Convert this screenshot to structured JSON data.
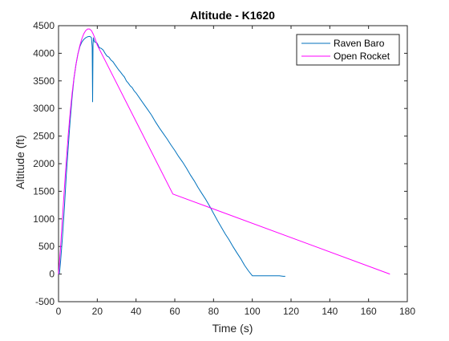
{
  "chart_data": {
    "type": "line",
    "title": "Altitude - K1620",
    "xlabel": "Time (s)",
    "ylabel": "Altitude (ft)",
    "xlim": [
      0,
      180
    ],
    "ylim": [
      -500,
      4500
    ],
    "xticks": [
      "0",
      "20",
      "40",
      "60",
      "80",
      "100",
      "120",
      "140",
      "160",
      "180"
    ],
    "yticks": [
      "-500",
      "0",
      "500",
      "1000",
      "1500",
      "2000",
      "2500",
      "3000",
      "3500",
      "4000",
      "4500"
    ],
    "grid": false,
    "legend_position": "top-right",
    "series": [
      {
        "name": "Raven Baro",
        "color": "#0072BD",
        "x": [
          0,
          0.5,
          1,
          2,
          3,
          4,
          5,
          6,
          7,
          8,
          9,
          10,
          11,
          12,
          13,
          14,
          15,
          16,
          16.5,
          17,
          17.4,
          17.6,
          17.8,
          18,
          18.5,
          19,
          20,
          21,
          22,
          23,
          24,
          25,
          26,
          27,
          28,
          29,
          30,
          31,
          32,
          33,
          34,
          35,
          36,
          37,
          38,
          39,
          40,
          42,
          44,
          46,
          48,
          50,
          52,
          54,
          56,
          58,
          60,
          62,
          64,
          66,
          68,
          70,
          72,
          74,
          76,
          78,
          80,
          82,
          84,
          86,
          88,
          90,
          92,
          94,
          96,
          98,
          100,
          102,
          104,
          106,
          108,
          110,
          111,
          111.5,
          112,
          112.3,
          112.6,
          113,
          114,
          116,
          117
        ],
        "y": [
          0,
          20,
          200,
          650,
          1200,
          1800,
          2300,
          2780,
          3200,
          3550,
          3800,
          3990,
          4120,
          4200,
          4250,
          4280,
          4300,
          4305,
          4300,
          4280,
          4100,
          3120,
          4150,
          4280,
          4210,
          4200,
          4180,
          4100,
          4090,
          4060,
          4000,
          3950,
          3930,
          3880,
          3850,
          3800,
          3750,
          3700,
          3660,
          3610,
          3570,
          3500,
          3460,
          3410,
          3380,
          3320,
          3280,
          3180,
          3080,
          2980,
          2880,
          2760,
          2650,
          2550,
          2450,
          2340,
          2240,
          2130,
          2030,
          1920,
          1800,
          1690,
          1570,
          1460,
          1350,
          1230,
          1100,
          970,
          850,
          730,
          620,
          500,
          390,
          280,
          160,
          60,
          -30,
          -30,
          -30,
          -30,
          -30,
          -30,
          -30,
          -30,
          -30,
          -30,
          -30,
          -30,
          -30,
          -40,
          -40
        ]
      },
      {
        "name": "Open Rocket",
        "color": "#FF00FF",
        "x": [
          0,
          1,
          2,
          3,
          4,
          5,
          6,
          7,
          8,
          9,
          10,
          11,
          12,
          13,
          14,
          15,
          16,
          17,
          18,
          19,
          20,
          59,
          171
        ],
        "y": [
          0,
          450,
          1000,
          1550,
          2050,
          2520,
          2920,
          3270,
          3560,
          3800,
          3990,
          4140,
          4260,
          4350,
          4410,
          4440,
          4440,
          4410,
          4340,
          4250,
          4150,
          1450,
          0
        ]
      }
    ]
  }
}
